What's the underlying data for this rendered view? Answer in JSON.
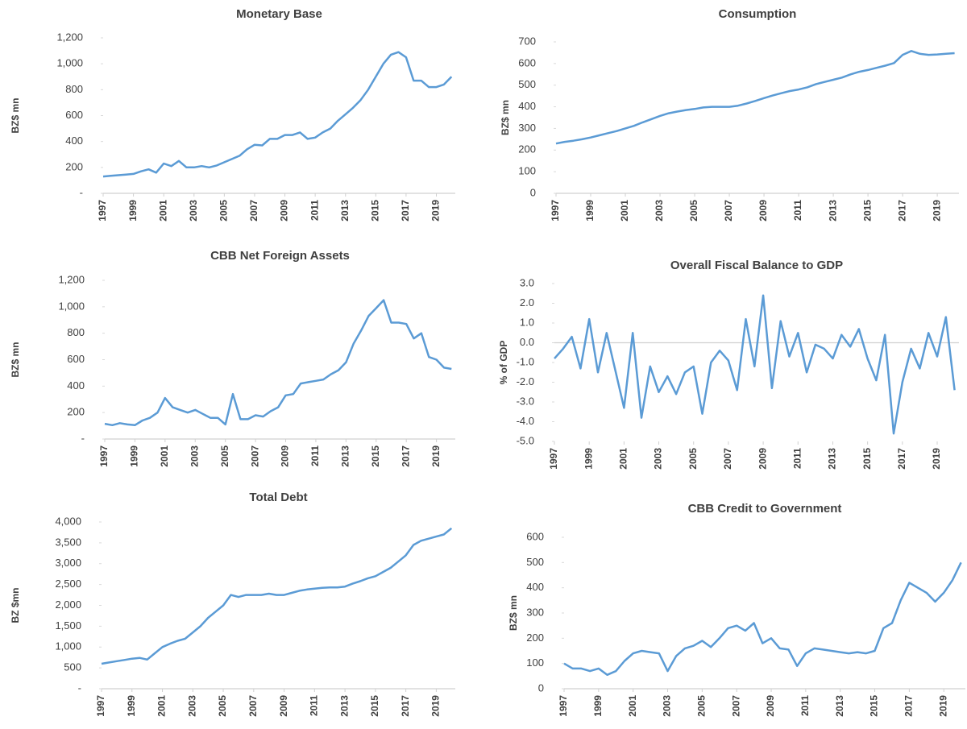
{
  "chart_data": [
    {
      "type": "line",
      "title": "Monetary Base",
      "y_label": "BZ$ mn",
      "color": "#5b9bd5",
      "x": [
        1997,
        1997.5,
        1998,
        1998.5,
        1999,
        1999.5,
        2000,
        2000.5,
        2001,
        2001.5,
        2002,
        2002.5,
        2003,
        2003.5,
        2004,
        2004.5,
        2005,
        2005.5,
        2006,
        2006.5,
        2007,
        2007.5,
        2008,
        2008.5,
        2009,
        2009.5,
        2010,
        2010.5,
        2011,
        2011.5,
        2012,
        2012.5,
        2013,
        2013.5,
        2014,
        2014.5,
        2015,
        2015.5,
        2016,
        2016.5,
        2017,
        2017.5,
        2018,
        2018.5,
        2019,
        2019.5,
        2020
      ],
      "values": [
        130,
        135,
        140,
        145,
        150,
        170,
        185,
        160,
        230,
        210,
        250,
        200,
        200,
        210,
        200,
        215,
        240,
        265,
        290,
        340,
        375,
        370,
        420,
        420,
        450,
        450,
        470,
        420,
        430,
        470,
        500,
        560,
        610,
        660,
        720,
        800,
        900,
        1000,
        1070,
        1090,
        1050,
        870,
        870,
        820,
        820,
        840,
        900
      ],
      "xlim": [
        1997,
        2020.25
      ],
      "xticks": [
        1997,
        1999,
        2001,
        2003,
        2005,
        2007,
        2009,
        2011,
        2013,
        2015,
        2017,
        2019
      ],
      "ylim": [
        0,
        1200
      ],
      "yticks": [
        {
          "value": 0,
          "label": "-"
        },
        200,
        400,
        600,
        800,
        {
          "value": 1000,
          "label": "1,000"
        },
        {
          "value": 1200,
          "label": "1,200"
        }
      ]
    },
    {
      "type": "line",
      "title": "Consumption",
      "y_label": "BZ$ mn",
      "color": "#5b9bd5",
      "x": [
        1997,
        1997.5,
        1998,
        1998.5,
        1999,
        1999.5,
        2000,
        2000.5,
        2001,
        2001.5,
        2002,
        2002.5,
        2003,
        2003.5,
        2004,
        2004.5,
        2005,
        2005.5,
        2006,
        2006.5,
        2007,
        2007.5,
        2008,
        2008.5,
        2009,
        2009.5,
        2010,
        2010.5,
        2011,
        2011.5,
        2012,
        2012.5,
        2013,
        2013.5,
        2014,
        2014.5,
        2015,
        2015.5,
        2016,
        2016.5,
        2017,
        2017.5,
        2018,
        2018.5,
        2019,
        2019.5,
        2020
      ],
      "values": [
        230,
        238,
        243,
        250,
        258,
        268,
        278,
        288,
        300,
        312,
        328,
        343,
        358,
        370,
        378,
        385,
        390,
        397,
        400,
        400,
        400,
        405,
        415,
        427,
        440,
        452,
        463,
        473,
        480,
        490,
        505,
        515,
        525,
        535,
        550,
        562,
        570,
        580,
        590,
        602,
        640,
        658,
        645,
        640,
        642,
        645,
        648
      ],
      "xlim": [
        1997,
        2020.25
      ],
      "xticks": [
        1997,
        1999,
        2001,
        2003,
        2005,
        2007,
        2009,
        2011,
        2013,
        2015,
        2017,
        2019
      ],
      "ylim": [
        0,
        700
      ],
      "yticks": [
        0,
        100,
        200,
        300,
        400,
        500,
        600,
        700
      ]
    },
    {
      "type": "line",
      "title": "CBB Net Foreign Assets",
      "y_label": "BZ$ mn",
      "color": "#5b9bd5",
      "x": [
        1997,
        1997.5,
        1998,
        1998.5,
        1999,
        1999.5,
        2000,
        2000.5,
        2001,
        2001.5,
        2002,
        2002.5,
        2003,
        2003.5,
        2004,
        2004.5,
        2005,
        2005.5,
        2006,
        2006.5,
        2007,
        2007.5,
        2008,
        2008.5,
        2009,
        2009.5,
        2010,
        2010.5,
        2011,
        2011.5,
        2012,
        2012.5,
        2013,
        2013.5,
        2014,
        2014.5,
        2015,
        2015.5,
        2016,
        2016.5,
        2017,
        2017.5,
        2018,
        2018.5,
        2019,
        2019.5,
        2020
      ],
      "values": [
        115,
        105,
        120,
        110,
        105,
        140,
        160,
        200,
        310,
        240,
        220,
        200,
        220,
        190,
        160,
        160,
        110,
        340,
        150,
        150,
        180,
        170,
        210,
        240,
        330,
        340,
        420,
        430,
        440,
        450,
        490,
        520,
        580,
        720,
        820,
        930,
        990,
        1050,
        880,
        880,
        870,
        760,
        800,
        620,
        600,
        540,
        530
      ],
      "xlim": [
        1997,
        2020.25
      ],
      "xticks": [
        1997,
        1999,
        2001,
        2003,
        2005,
        2007,
        2009,
        2011,
        2013,
        2015,
        2017,
        2019
      ],
      "ylim": [
        0,
        1200
      ],
      "yticks": [
        {
          "value": 0,
          "label": "-"
        },
        200,
        400,
        600,
        800,
        {
          "value": 1000,
          "label": "1,000"
        },
        {
          "value": 1200,
          "label": "1,200"
        }
      ]
    },
    {
      "type": "line",
      "title": "Overall Fiscal Balance to GDP",
      "y_label": "% of GDP",
      "color": "#5b9bd5",
      "zero_line": true,
      "x": [
        1997,
        1997.5,
        1998,
        1998.5,
        1999,
        1999.5,
        2000,
        2000.5,
        2001,
        2001.5,
        2002,
        2002.5,
        2003,
        2003.5,
        2004,
        2004.5,
        2005,
        2005.5,
        2006,
        2006.5,
        2007,
        2007.5,
        2008,
        2008.5,
        2009,
        2009.5,
        2010,
        2010.5,
        2011,
        2011.5,
        2012,
        2012.5,
        2013,
        2013.5,
        2014,
        2014.5,
        2015,
        2015.5,
        2016,
        2016.5,
        2017,
        2017.5,
        2018,
        2018.5,
        2019,
        2019.5,
        2020
      ],
      "values": [
        -0.8,
        -0.3,
        0.3,
        -1.3,
        1.2,
        -1.5,
        0.5,
        -1.4,
        -3.3,
        0.5,
        -3.8,
        -1.2,
        -2.5,
        -1.7,
        -2.6,
        -1.5,
        -1.2,
        -3.6,
        -1.0,
        -0.4,
        -0.9,
        -2.4,
        1.2,
        -1.2,
        2.4,
        -2.3,
        1.1,
        -0.7,
        0.5,
        -1.5,
        -0.1,
        -0.3,
        -0.8,
        0.4,
        -0.2,
        0.7,
        -0.8,
        -1.9,
        0.4,
        -4.6,
        -2.0,
        -0.3,
        -1.3,
        0.5,
        -0.7,
        1.3,
        -2.4
      ],
      "xlim": [
        1997,
        2020.25
      ],
      "xticks": [
        1997,
        1999,
        2001,
        2003,
        2005,
        2007,
        2009,
        2011,
        2013,
        2015,
        2017,
        2019
      ],
      "ylim": [
        -5,
        3
      ],
      "yticks": [
        {
          "value": -5,
          "label": "-5.0"
        },
        {
          "value": -4,
          "label": "-4.0"
        },
        {
          "value": -3,
          "label": "-3.0"
        },
        {
          "value": -2,
          "label": "-2.0"
        },
        {
          "value": -1,
          "label": "-1.0"
        },
        {
          "value": 0,
          "label": "0.0"
        },
        {
          "value": 1,
          "label": "1.0"
        },
        {
          "value": 2,
          "label": "2.0"
        },
        {
          "value": 3,
          "label": "3.0"
        }
      ]
    },
    {
      "type": "line",
      "title": "Total Debt",
      "y_label": "BZ $mn",
      "color": "#5b9bd5",
      "x": [
        1997,
        1997.5,
        1998,
        1998.5,
        1999,
        1999.5,
        2000,
        2000.5,
        2001,
        2001.5,
        2002,
        2002.5,
        2003,
        2003.5,
        2004,
        2004.5,
        2005,
        2005.5,
        2006,
        2006.5,
        2007,
        2007.5,
        2008,
        2008.5,
        2009,
        2009.5,
        2010,
        2010.5,
        2011,
        2011.5,
        2012,
        2012.5,
        2013,
        2013.5,
        2014,
        2014.5,
        2015,
        2015.5,
        2016,
        2016.5,
        2017,
        2017.5,
        2018,
        2018.5,
        2019,
        2019.5,
        2020
      ],
      "values": [
        600,
        630,
        660,
        690,
        720,
        740,
        700,
        850,
        1000,
        1080,
        1150,
        1200,
        1350,
        1500,
        1700,
        1850,
        2000,
        2250,
        2200,
        2250,
        2250,
        2250,
        2280,
        2250,
        2250,
        2300,
        2350,
        2380,
        2400,
        2420,
        2430,
        2430,
        2450,
        2520,
        2580,
        2650,
        2700,
        2800,
        2900,
        3050,
        3200,
        3450,
        3550,
        3600,
        3650,
        3700,
        3850
      ],
      "xlim": [
        1997,
        2020.25
      ],
      "xticks": [
        1997,
        1999,
        2001,
        2003,
        2005,
        2007,
        2009,
        2011,
        2013,
        2015,
        2017,
        2019
      ],
      "ylim": [
        0,
        4000
      ],
      "yticks": [
        {
          "value": 0,
          "label": "-"
        },
        500,
        {
          "value": 1000,
          "label": "1,000"
        },
        {
          "value": 1500,
          "label": "1,500"
        },
        {
          "value": 2000,
          "label": "2,000"
        },
        {
          "value": 2500,
          "label": "2,500"
        },
        {
          "value": 3000,
          "label": "3,000"
        },
        {
          "value": 3500,
          "label": "3,500"
        },
        {
          "value": 4000,
          "label": "4,000"
        }
      ]
    },
    {
      "type": "line",
      "title": "CBB Credit to Government",
      "y_label": "BZ$ mn",
      "color": "#5b9bd5",
      "x": [
        1997,
        1997.5,
        1998,
        1998.5,
        1999,
        1999.5,
        2000,
        2000.5,
        2001,
        2001.5,
        2002,
        2002.5,
        2003,
        2003.5,
        2004,
        2004.5,
        2005,
        2005.5,
        2006,
        2006.5,
        2007,
        2007.5,
        2008,
        2008.5,
        2009,
        2009.5,
        2010,
        2010.5,
        2011,
        2011.5,
        2012,
        2012.5,
        2013,
        2013.5,
        2014,
        2014.5,
        2015,
        2015.5,
        2016,
        2016.5,
        2017,
        2017.5,
        2018,
        2018.5,
        2019,
        2019.5,
        2020
      ],
      "values": [
        100,
        80,
        80,
        70,
        80,
        55,
        70,
        110,
        140,
        150,
        145,
        140,
        70,
        130,
        160,
        170,
        190,
        165,
        200,
        240,
        250,
        230,
        260,
        180,
        200,
        160,
        155,
        90,
        140,
        160,
        155,
        150,
        145,
        140,
        145,
        140,
        150,
        240,
        260,
        350,
        420,
        400,
        380,
        345,
        380,
        430,
        500
      ],
      "xlim": [
        1997,
        2020.25
      ],
      "xticks": [
        1997,
        1999,
        2001,
        2003,
        2005,
        2007,
        2009,
        2011,
        2013,
        2015,
        2017,
        2019
      ],
      "ylim": [
        0,
        600
      ],
      "yticks": [
        0,
        100,
        200,
        300,
        400,
        500,
        600
      ]
    }
  ]
}
